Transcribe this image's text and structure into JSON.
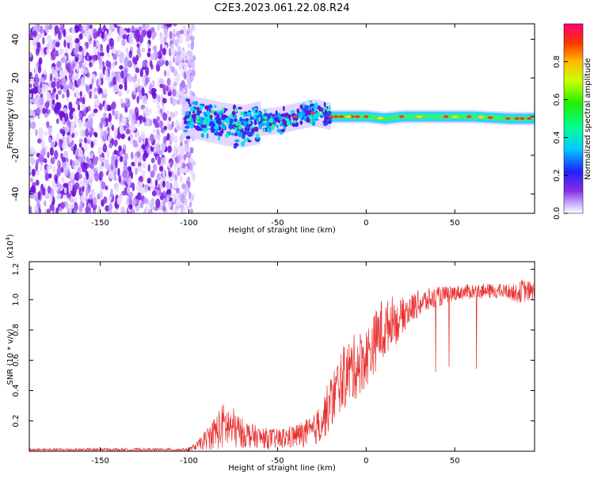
{
  "chart_data": [
    {
      "type": "heatmap",
      "title": "C2E3.2023.061.22.08.R24",
      "xlabel": "Height of straight line (km)",
      "ylabel": "Frequency (Hz)",
      "xlim": [
        -190,
        95
      ],
      "ylim": [
        -50,
        48
      ],
      "xticks": [
        -150,
        -100,
        -50,
        0,
        50
      ],
      "yticks": [
        -40,
        -20,
        0,
        20,
        40
      ],
      "ytick_labels": [
        "-40",
        "-20",
        "0",
        "20",
        "40"
      ],
      "noise_region_x": [
        -190,
        -100
      ],
      "signal_path": [
        {
          "x": -100,
          "y": 0
        },
        {
          "x": -90,
          "y": -2
        },
        {
          "x": -80,
          "y": -4
        },
        {
          "x": -70,
          "y": -5
        },
        {
          "x": -60,
          "y": -3
        },
        {
          "x": -50,
          "y": -2
        },
        {
          "x": -40,
          "y": 0
        },
        {
          "x": -30,
          "y": 2
        },
        {
          "x": -20,
          "y": 0
        },
        {
          "x": -10,
          "y": 0
        },
        {
          "x": 0,
          "y": 0
        },
        {
          "x": 10,
          "y": -1
        },
        {
          "x": 20,
          "y": 0
        },
        {
          "x": 40,
          "y": 0
        },
        {
          "x": 60,
          "y": 0
        },
        {
          "x": 80,
          "y": -1
        },
        {
          "x": 95,
          "y": -1
        }
      ],
      "colorbar": {
        "label": "Normalized spectral amplitude",
        "range": [
          0,
          1
        ],
        "ticks": [
          "0.0",
          "0.2",
          "0.4",
          "0.6",
          "0.8"
        ],
        "tick_values": [
          0.0,
          0.2,
          0.4,
          0.6,
          0.8
        ]
      }
    },
    {
      "type": "line",
      "xlabel": "Height of straight line (km)",
      "ylabel": "SNR (10 * v/v)",
      "scale_label": "(x10",
      "scale_exp": "4",
      "scale_close": ")",
      "xlim": [
        -190,
        95
      ],
      "ylim": [
        0,
        1.25
      ],
      "xticks": [
        -150,
        -100,
        -50,
        0,
        50
      ],
      "yticks": [
        0.2,
        0.4,
        0.6,
        0.8,
        1.0,
        1.2
      ],
      "ytick_labels": [
        "0.2",
        "0.4",
        "0.6",
        "0.8",
        "1.0",
        "1.2"
      ],
      "series": [
        {
          "name": "SNR",
          "color": "#e83030",
          "x": [
            -190,
            -100,
            -95,
            -90,
            -85,
            -80,
            -75,
            -70,
            -60,
            -50,
            -40,
            -30,
            -25,
            -20,
            -15,
            -10,
            -5,
            0,
            5,
            8,
            10,
            15,
            20,
            25,
            30,
            40,
            50,
            60,
            70,
            80,
            85,
            88,
            95
          ],
          "y": [
            0.01,
            0.01,
            0.04,
            0.08,
            0.13,
            0.17,
            0.15,
            0.12,
            0.09,
            0.08,
            0.1,
            0.13,
            0.2,
            0.32,
            0.45,
            0.52,
            0.57,
            0.62,
            0.72,
            0.8,
            0.78,
            0.88,
            0.95,
            0.99,
            1.02,
            1.05,
            1.07,
            1.08,
            1.08,
            1.08,
            1.07,
            1.1,
            1.08
          ],
          "noise_amplitude": [
            0.01,
            0.01,
            0.03,
            0.07,
            0.12,
            0.16,
            0.14,
            0.1,
            0.07,
            0.07,
            0.08,
            0.1,
            0.14,
            0.18,
            0.2,
            0.22,
            0.22,
            0.2,
            0.2,
            0.22,
            0.2,
            0.15,
            0.12,
            0.1,
            0.09,
            0.07,
            0.05,
            0.05,
            0.05,
            0.05,
            0.06,
            0.08,
            0.06
          ]
        }
      ]
    }
  ]
}
